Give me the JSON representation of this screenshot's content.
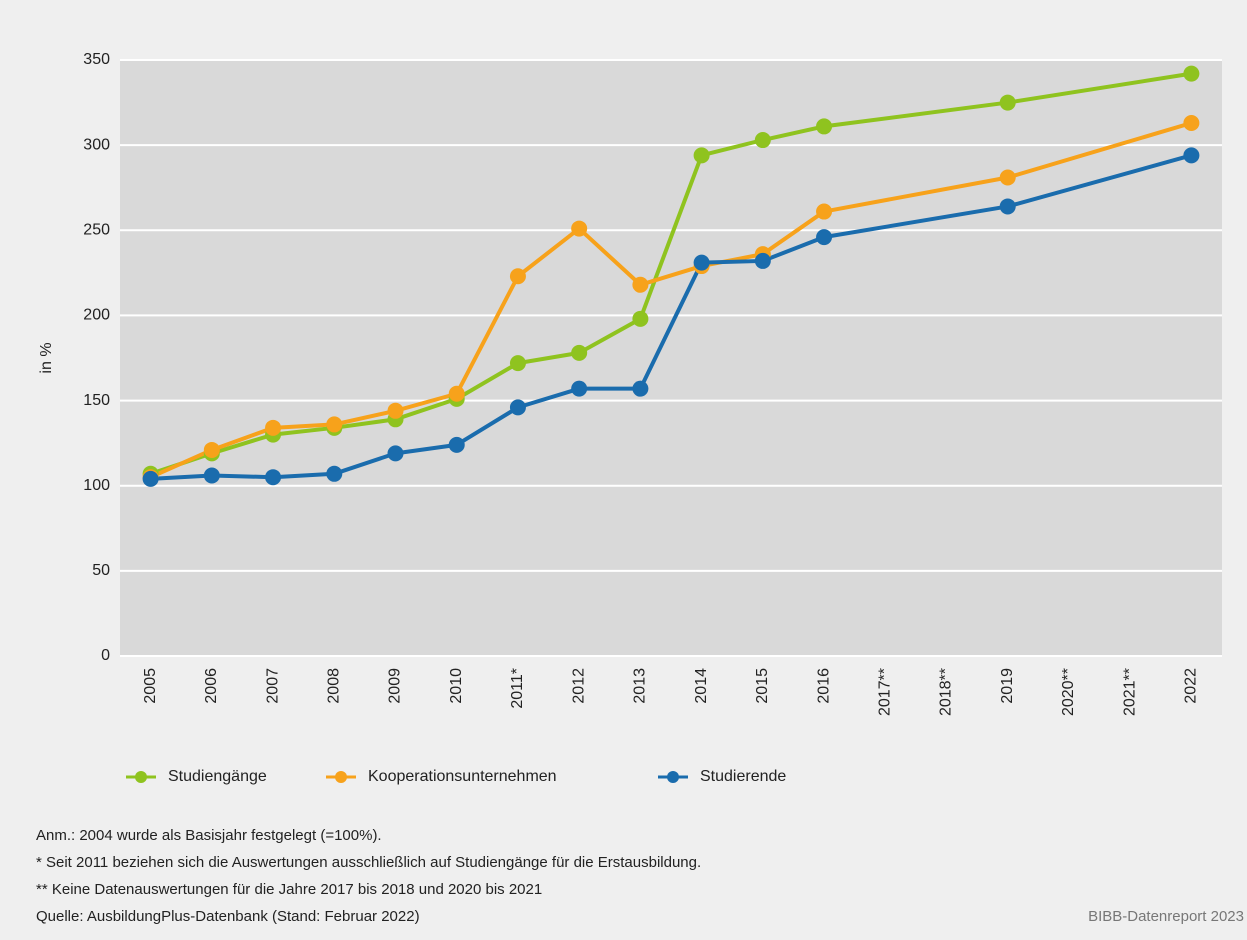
{
  "chart_data": {
    "type": "line",
    "y_label": "in %",
    "categories": [
      "2005",
      "2006",
      "2007",
      "2008",
      "2009",
      "2010",
      "2011*",
      "2012",
      "2013",
      "2014",
      "2015",
      "2016",
      "2017**",
      "2018**",
      "2019",
      "2020**",
      "2021**",
      "2022"
    ],
    "series": [
      {
        "name": "Studiengänge",
        "color": "#8fc31f",
        "values": [
          107,
          119,
          130,
          134,
          139,
          151,
          172,
          178,
          198,
          294,
          303,
          311,
          null,
          null,
          325,
          null,
          null,
          342
        ]
      },
      {
        "name": "Kooperationsunternehmen",
        "color": "#f7a21b",
        "values": [
          105,
          121,
          134,
          136,
          144,
          154,
          223,
          251,
          218,
          229,
          236,
          261,
          null,
          null,
          281,
          null,
          null,
          313
        ]
      },
      {
        "name": "Studierende",
        "color": "#1a6cad",
        "values": [
          104,
          106,
          105,
          107,
          119,
          124,
          146,
          157,
          157,
          231,
          232,
          246,
          null,
          null,
          264,
          null,
          null,
          294
        ]
      }
    ],
    "connect_gaps": true,
    "ylim": [
      0,
      350
    ],
    "yticks": [
      0,
      50,
      100,
      150,
      200,
      250,
      300,
      350
    ],
    "grid": true,
    "notes": [
      "Anm.: 2004 wurde als Basisjahr festgelegt (=100%).",
      "* Seit 2011 beziehen sich die Auswertungen ausschließlich auf Studiengänge für die Erstausbildung.",
      "** Keine Datenauswertungen für die Jahre 2017 bis 2018 und 2020 bis 2021",
      "Quelle: AusbildungPlus-Datenbank (Stand: Februar 2022)"
    ],
    "credit": "BIBB-Datenreport 2023"
  }
}
